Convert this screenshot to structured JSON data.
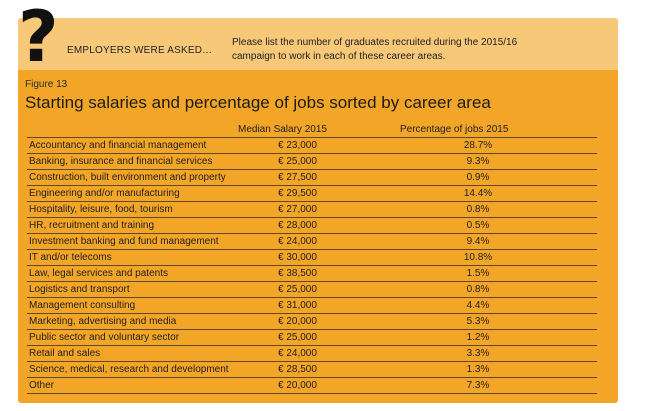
{
  "header": {
    "question_mark": "?",
    "asked": "EMPLOYERS WERE ASKED…",
    "question_line1": "Please list the number of graduates recruited during the 2015/16",
    "question_line2": "campaign to work in each of these career areas."
  },
  "figure": {
    "label": "Figure 13",
    "title": "Starting salaries and percentage of jobs sorted by career area"
  },
  "table": {
    "headers": {
      "salary": "Median Salary 2015",
      "jobs": "Percentage of jobs 2015"
    },
    "rows": [
      {
        "area": "Accountancy and financial management",
        "salary": "€ 23,000",
        "jobs": "28.7%"
      },
      {
        "area": "Banking, insurance and financial services",
        "salary": "€ 25,000",
        "jobs": "9.3%"
      },
      {
        "area": "Construction, built environment and property",
        "salary": "€ 27,500",
        "jobs": "0.9%"
      },
      {
        "area": "Engineering and/or manufacturing",
        "salary": "€ 29,500",
        "jobs": "14.4%"
      },
      {
        "area": "Hospitality, leisure, food, tourism",
        "salary": "€ 27,000",
        "jobs": "0.8%"
      },
      {
        "area": "HR, recruitment and training",
        "salary": "€ 28,000",
        "jobs": "0.5%"
      },
      {
        "area": "Investment banking and fund management",
        "salary": "€ 24,000",
        "jobs": "9.4%"
      },
      {
        "area": "IT and/or telecoms",
        "salary": "€ 30,000",
        "jobs": "10.8%"
      },
      {
        "area": "Law, legal services and patents",
        "salary": "€ 38,500",
        "jobs": "1.5%"
      },
      {
        "area": "Logistics and transport",
        "salary": "€ 25,000",
        "jobs": "0.8%"
      },
      {
        "area": "Management consulting",
        "salary": "€ 31,000",
        "jobs": "4.4%"
      },
      {
        "area": "Marketing, advertising and media",
        "salary": "€ 20,000",
        "jobs": "5.3%"
      },
      {
        "area": "Public sector and voluntary sector",
        "salary": "€ 25,000",
        "jobs": "1.2%"
      },
      {
        "area": "Retail and sales",
        "salary": "€ 24,000",
        "jobs": "3.3%"
      },
      {
        "area": "Science, medical, research and development",
        "salary": "€ 28,500",
        "jobs": "1.3%"
      },
      {
        "area": "Other",
        "salary": "€ 20,000",
        "jobs": "7.3%"
      }
    ]
  },
  "colors": {
    "top_panel": "#f7c878",
    "main_panel": "#f2a526",
    "rule": "#5a4a2a"
  }
}
